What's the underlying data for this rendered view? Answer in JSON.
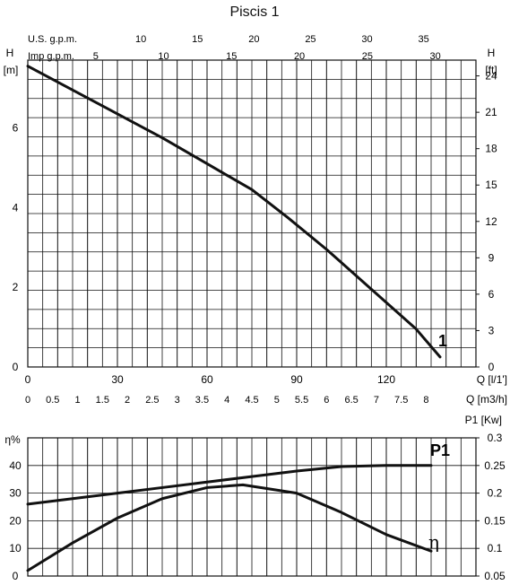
{
  "chart_data": [
    {
      "type": "line",
      "title": "Piscis 1",
      "xlabel": "Q [l/1']",
      "ylabel": "H [m]",
      "secondary_ylabel": "H [ft]",
      "xlim": [
        0,
        150
      ],
      "ylim": [
        0,
        7.7
      ],
      "secondary_ylim": [
        0,
        25.3
      ],
      "axis_labels": {
        "left_top": "H",
        "left_unit": "[m]",
        "right_top": "H",
        "right_unit": "[ft]",
        "bottom_q_lpm": "Q [l/1']",
        "bottom_q_m3h": "Q [m3/h]",
        "top_us": "U.S. g.p.m.",
        "top_imp": "Imp g.p.m."
      },
      "ticks": {
        "us_gpm": [
          10,
          15,
          20,
          25,
          30,
          35
        ],
        "imp_gpm": [
          5,
          10,
          15,
          20,
          25,
          30
        ],
        "m": [
          0,
          2,
          4,
          6
        ],
        "ft": [
          0,
          3,
          6,
          9,
          12,
          15,
          18,
          21,
          24
        ],
        "lpm": [
          0,
          30,
          60,
          90,
          120
        ],
        "m3h": [
          0,
          0.5,
          1,
          1.5,
          2,
          2.5,
          3,
          3.5,
          4,
          4.5,
          5,
          5.5,
          6,
          6.5,
          7,
          7.5,
          8
        ]
      },
      "tick_labels": {
        "us_gpm": [
          "10",
          "15",
          "20",
          "25",
          "30",
          "35"
        ],
        "imp_gpm": [
          "5",
          "10",
          "15",
          "20",
          "25",
          "30"
        ],
        "m": [
          "0",
          "2",
          "4",
          "6"
        ],
        "ft": [
          "0",
          "3",
          "6",
          "9",
          "12",
          "15",
          "18",
          "21",
          "24"
        ],
        "lpm": [
          "0",
          "30",
          "60",
          "90",
          "120"
        ],
        "m3h": [
          "0",
          "0.5",
          "1",
          "1.5",
          "2",
          "2.5",
          "3",
          "3.5",
          "4",
          "4.5",
          "5",
          "5.5",
          "6",
          "6.5",
          "7",
          "7.5",
          "8"
        ]
      },
      "series": [
        {
          "name": "1",
          "x": [
            0,
            15,
            30,
            45,
            60,
            75,
            87,
            100,
            115,
            130,
            138
          ],
          "y": [
            7.55,
            6.95,
            6.35,
            5.75,
            5.1,
            4.45,
            3.75,
            2.95,
            1.95,
            0.95,
            0.25
          ]
        }
      ],
      "grid": true,
      "legend": "none",
      "colors": {
        "line": "#111111",
        "grid": "#111111",
        "background": "#ffffff"
      }
    },
    {
      "type": "line",
      "title": "",
      "xlabel": "",
      "ylabel": "η%",
      "secondary_ylabel": "P1 [Kw]",
      "xlim": [
        0,
        150
      ],
      "ylim": [
        0,
        50
      ],
      "secondary_ylim": [
        0.05,
        0.3
      ],
      "axis_labels": {
        "left": "η%",
        "right": "P1 [Kw]"
      },
      "ticks": {
        "left": [
          0,
          10,
          20,
          30,
          40
        ],
        "right": [
          0.05,
          0.1,
          0.15,
          0.2,
          0.25,
          0.3
        ]
      },
      "tick_labels": {
        "left": [
          "0",
          "10",
          "20",
          "30",
          "40"
        ],
        "right": [
          "0.05",
          "0.1",
          "0.15",
          "0.2",
          "0.25",
          "0.3"
        ]
      },
      "series": [
        {
          "name": "P1",
          "axis": "right",
          "x": [
            0,
            15,
            30,
            45,
            60,
            75,
            90,
            105,
            120,
            135
          ],
          "y": [
            0.18,
            0.19,
            0.2,
            0.21,
            0.22,
            0.23,
            0.24,
            0.248,
            0.25,
            0.25
          ]
        },
        {
          "name": "η",
          "axis": "left",
          "x": [
            0,
            15,
            30,
            45,
            60,
            72,
            90,
            105,
            120,
            135
          ],
          "y": [
            2,
            12,
            21,
            28,
            32,
            33,
            30,
            23,
            15,
            9
          ]
        }
      ],
      "grid": true,
      "legend": "none",
      "colors": {
        "line": "#111111",
        "grid": "#111111",
        "background": "#ffffff"
      }
    }
  ]
}
